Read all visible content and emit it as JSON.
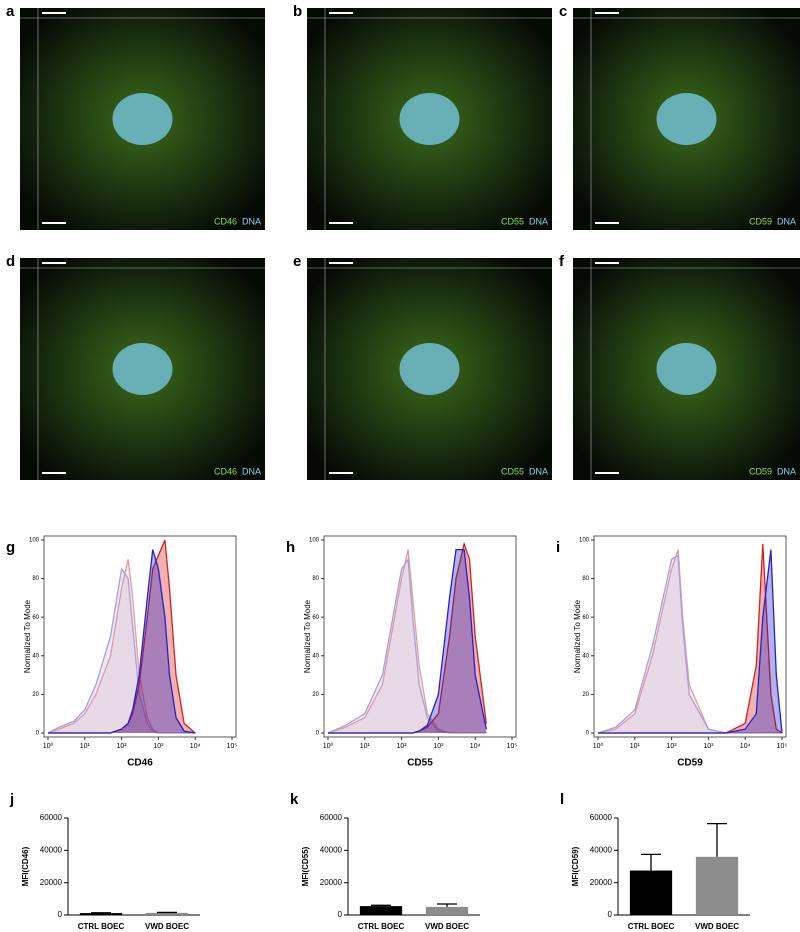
{
  "images": [
    {
      "letter": "a",
      "marker": "CD46",
      "stain": "DNA"
    },
    {
      "letter": "b",
      "marker": "CD55",
      "stain": "DNA"
    },
    {
      "letter": "c",
      "marker": "CD59",
      "stain": "DNA"
    },
    {
      "letter": "d",
      "marker": "CD46",
      "stain": "DNA"
    },
    {
      "letter": "e",
      "marker": "CD55",
      "stain": "DNA"
    },
    {
      "letter": "f",
      "marker": "CD59",
      "stain": "DNA"
    }
  ],
  "chart_data": [
    {
      "type": "histogram-overlay",
      "label": "g",
      "x_label": "CD46",
      "y_label": "Normalized To Mode",
      "log_x": true,
      "xlim": [
        1,
        100000
      ],
      "xticks": [
        {
          "value": 1,
          "label": "10⁰"
        },
        {
          "value": 10,
          "label": "10¹"
        },
        {
          "value": 100,
          "label": "10²"
        },
        {
          "value": 1000,
          "label": "10³"
        },
        {
          "value": 10000,
          "label": "10⁴"
        },
        {
          "value": 100000,
          "label": "10⁵"
        }
      ],
      "ylim": [
        0,
        100
      ],
      "yticks": [
        0,
        20,
        40,
        60,
        80,
        100
      ],
      "x": [
        1,
        2,
        5,
        10,
        20,
        50,
        100,
        150,
        200,
        300,
        500,
        700,
        1000,
        1500,
        2000,
        3000,
        5000,
        10000
      ],
      "series": [
        {
          "color": "#e79a9a",
          "values": [
            0,
            2,
            5,
            10,
            20,
            40,
            75,
            90,
            70,
            30,
            8,
            2,
            0,
            0,
            0,
            0,
            0,
            0
          ]
        },
        {
          "color": "#a99ee0",
          "values": [
            0,
            3,
            6,
            12,
            25,
            50,
            85,
            80,
            55,
            20,
            5,
            1,
            0,
            0,
            0,
            0,
            0,
            0
          ]
        },
        {
          "color": "#d42020",
          "values": [
            0,
            0,
            0,
            0,
            0,
            0,
            2,
            5,
            10,
            25,
            60,
            85,
            92,
            100,
            75,
            30,
            5,
            0
          ]
        },
        {
          "color": "#2222c8",
          "values": [
            0,
            0,
            0,
            0,
            0,
            0,
            2,
            5,
            12,
            30,
            70,
            95,
            85,
            60,
            30,
            8,
            1,
            0
          ]
        }
      ]
    },
    {
      "type": "histogram-overlay",
      "label": "h",
      "x_label": "CD55",
      "y_label": "Normalized To Mode",
      "log_x": true,
      "xlim": [
        1,
        100000
      ],
      "xticks": [
        {
          "value": 1,
          "label": "10⁰"
        },
        {
          "value": 10,
          "label": "10¹"
        },
        {
          "value": 100,
          "label": "10²"
        },
        {
          "value": 1000,
          "label": "10³"
        },
        {
          "value": 10000,
          "label": "10⁴"
        },
        {
          "value": 100000,
          "label": "10⁵"
        }
      ],
      "ylim": [
        0,
        100
      ],
      "yticks": [
        0,
        20,
        40,
        60,
        80,
        100
      ],
      "x": [
        1,
        3,
        10,
        30,
        100,
        150,
        200,
        300,
        500,
        1000,
        2000,
        3000,
        5000,
        7000,
        10000,
        20000
      ],
      "series": [
        {
          "color": "#e79a9a",
          "values": [
            0,
            3,
            8,
            25,
            80,
            95,
            70,
            35,
            10,
            2,
            0,
            0,
            0,
            0,
            0,
            0
          ]
        },
        {
          "color": "#a99ee0",
          "values": [
            0,
            4,
            10,
            30,
            85,
            90,
            60,
            25,
            8,
            1,
            0,
            0,
            0,
            0,
            0,
            0
          ]
        },
        {
          "color": "#d42020",
          "values": [
            0,
            0,
            0,
            0,
            0,
            0,
            0,
            1,
            3,
            10,
            50,
            80,
            98,
            90,
            50,
            5
          ]
        },
        {
          "color": "#2222c8",
          "values": [
            0,
            0,
            0,
            0,
            0,
            0,
            0,
            1,
            4,
            20,
            70,
            95,
            95,
            70,
            30,
            2
          ]
        }
      ]
    },
    {
      "type": "histogram-overlay",
      "label": "i",
      "x_label": "CD59",
      "y_label": "Normalized To Mode",
      "log_x": true,
      "xlim": [
        1,
        100000
      ],
      "xticks": [
        {
          "value": 1,
          "label": "10⁰"
        },
        {
          "value": 10,
          "label": "10¹"
        },
        {
          "value": 100,
          "label": "10²"
        },
        {
          "value": 1000,
          "label": "10³"
        },
        {
          "value": 10000,
          "label": "10⁴"
        },
        {
          "value": 100000,
          "label": "10⁵"
        }
      ],
      "ylim": [
        0,
        100
      ],
      "yticks": [
        0,
        20,
        40,
        60,
        80,
        100
      ],
      "x": [
        1,
        3,
        10,
        30,
        100,
        150,
        200,
        300,
        1000,
        3000,
        10000,
        20000,
        30000,
        50000,
        70000,
        100000
      ],
      "series": [
        {
          "color": "#e79a9a",
          "values": [
            0,
            2,
            10,
            40,
            85,
            95,
            60,
            25,
            2,
            0,
            0,
            0,
            0,
            0,
            0,
            0
          ]
        },
        {
          "color": "#a99ee0",
          "values": [
            0,
            3,
            12,
            45,
            90,
            92,
            55,
            20,
            2,
            0,
            0,
            0,
            0,
            0,
            0,
            0
          ]
        },
        {
          "color": "#d42020",
          "values": [
            0,
            0,
            0,
            0,
            0,
            0,
            0,
            0,
            0,
            0,
            5,
            35,
            98,
            20,
            2,
            0
          ]
        },
        {
          "color": "#2222c8",
          "values": [
            0,
            0,
            0,
            0,
            0,
            0,
            0,
            0,
            0,
            0,
            2,
            10,
            60,
            95,
            30,
            0
          ]
        }
      ]
    },
    {
      "type": "bar",
      "label": "j",
      "y_label": "MFI(CD46)",
      "categories": [
        "CTRL BOEC",
        "VWD BOEC"
      ],
      "values": [
        1200,
        1300
      ],
      "errors": [
        200,
        300
      ],
      "colors": [
        "#000000",
        "#8c8c8c"
      ],
      "ylim": [
        0,
        60000
      ],
      "yticks": [
        0,
        20000,
        40000,
        60000
      ]
    },
    {
      "type": "bar",
      "label": "k",
      "y_label": "MFI(CD55)",
      "categories": [
        "CTRL BOEC",
        "VWD BOEC"
      ],
      "values": [
        5500,
        5000
      ],
      "errors": [
        500,
        1800
      ],
      "colors": [
        "#000000",
        "#8c8c8c"
      ],
      "ylim": [
        0,
        60000
      ],
      "yticks": [
        0,
        20000,
        40000,
        60000
      ]
    },
    {
      "type": "bar",
      "label": "l",
      "y_label": "MFI(CD59)",
      "categories": [
        "CTRL BOEC",
        "VWD BOEC"
      ],
      "values": [
        27500,
        36000
      ],
      "errors": [
        10000,
        20500
      ],
      "colors": [
        "#000000",
        "#8c8c8c"
      ],
      "ylim": [
        0,
        60000
      ],
      "yticks": [
        0,
        20000,
        40000,
        60000
      ]
    }
  ]
}
